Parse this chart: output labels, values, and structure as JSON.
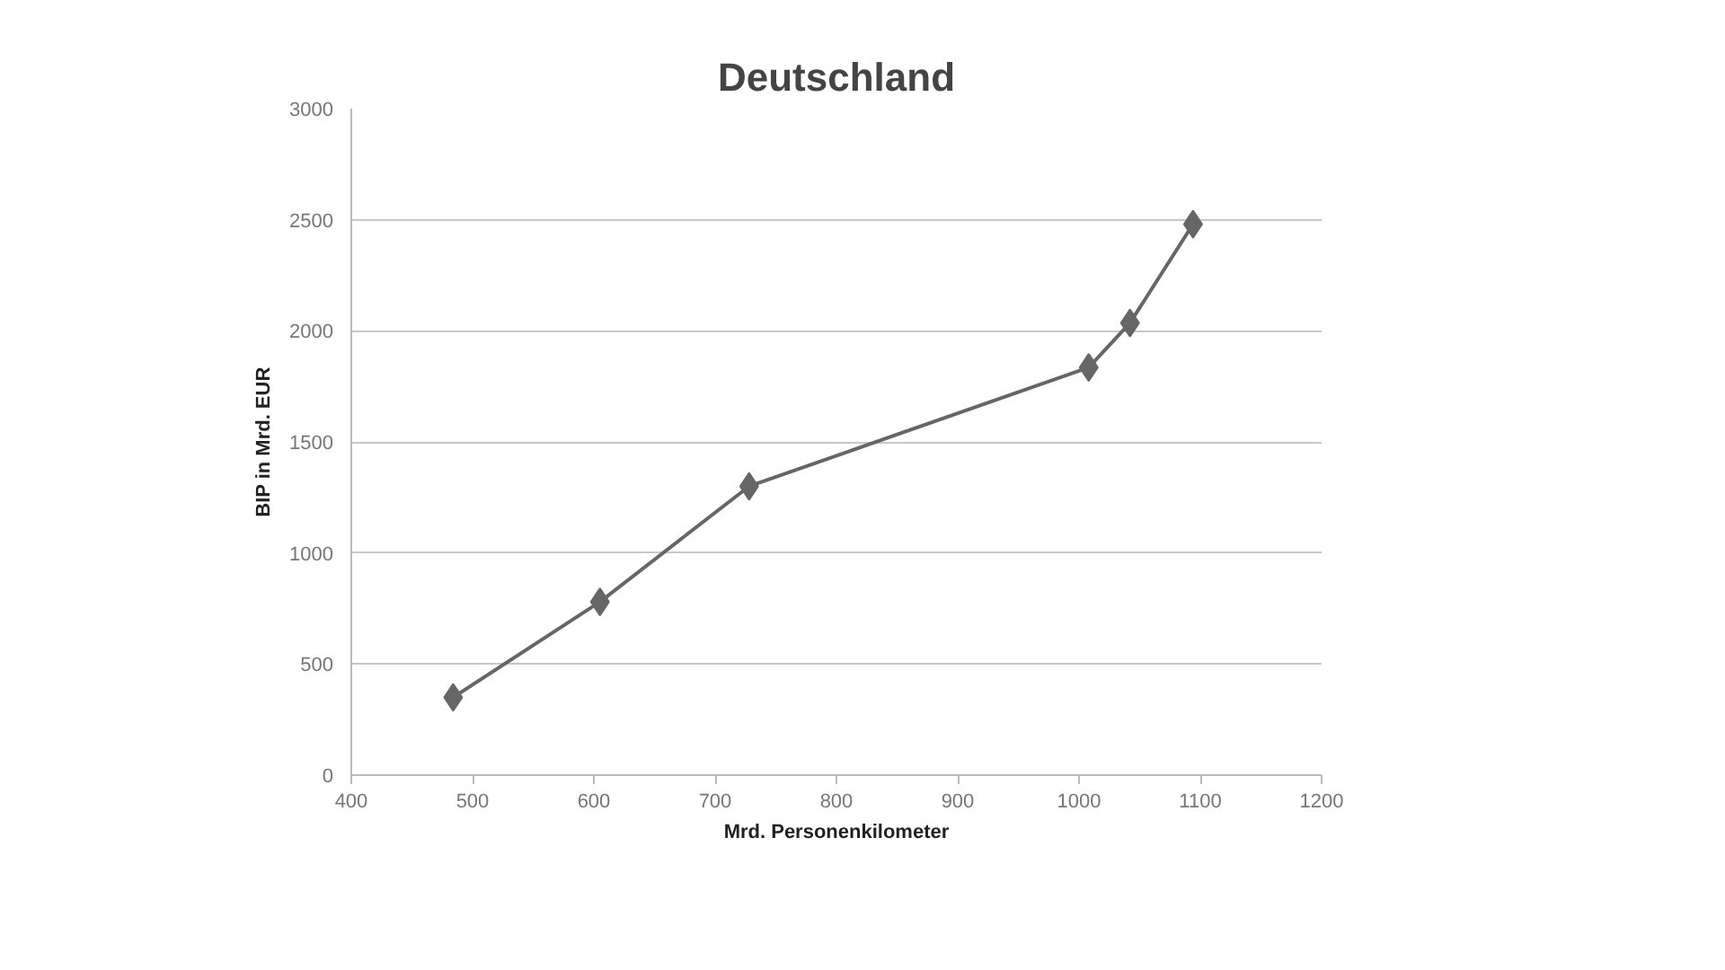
{
  "chart_data": {
    "type": "line",
    "title": "Deutschland",
    "xlabel": "Mrd. Personenkilometer",
    "ylabel": "BIP in Mrd. EUR",
    "x": [
      484,
      605,
      728,
      1008,
      1042,
      1094
    ],
    "series": [
      {
        "color": "#666666",
        "values": [
          350,
          780,
          1300,
          1835,
          2035,
          2480
        ]
      }
    ],
    "xlim": [
      400,
      1200
    ],
    "xticks": [
      400,
      500,
      600,
      700,
      800,
      900,
      1000,
      1100,
      1200
    ],
    "ylim": [
      0,
      3000
    ],
    "yticks": [
      0,
      500,
      1000,
      1500,
      2000,
      2500,
      3000
    ],
    "grid": "y",
    "marker": "diamond",
    "line_style": "solid"
  }
}
